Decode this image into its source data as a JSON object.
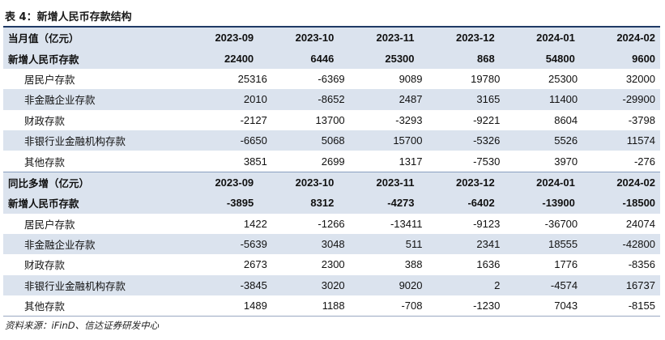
{
  "title": "表 4：新增人民币存款结构",
  "source": "资料来源：iFinD、信达证券研发中心",
  "section1": {
    "header": {
      "label": "当月值（亿元）",
      "cols": [
        "2023-09",
        "2023-10",
        "2023-11",
        "2023-12",
        "2024-01",
        "2024-02"
      ]
    },
    "rows": [
      {
        "label": "新增人民币存款",
        "values": [
          "22400",
          "6446",
          "25300",
          "868",
          "54800",
          "9600"
        ]
      },
      {
        "label": "居民户存款",
        "values": [
          "25316",
          "-6369",
          "9089",
          "19780",
          "25300",
          "32000"
        ]
      },
      {
        "label": "非金融企业存款",
        "values": [
          "2010",
          "-8652",
          "2487",
          "3165",
          "11400",
          "-29900"
        ]
      },
      {
        "label": "财政存款",
        "values": [
          "-2127",
          "13700",
          "-3293",
          "-9221",
          "8604",
          "-3798"
        ]
      },
      {
        "label": "非银行业金融机构存款",
        "values": [
          "-6650",
          "5068",
          "15700",
          "-5326",
          "5526",
          "11574"
        ]
      },
      {
        "label": "其他存款",
        "values": [
          "3851",
          "2699",
          "1317",
          "-7530",
          "3970",
          "-276"
        ]
      }
    ]
  },
  "section2": {
    "header": {
      "label": "同比多增（亿元）",
      "cols": [
        "2023-09",
        "2023-10",
        "2023-11",
        "2023-12",
        "2024-01",
        "2024-02"
      ]
    },
    "rows": [
      {
        "label": "新增人民币存款",
        "values": [
          "-3895",
          "8312",
          "-4273",
          "-6402",
          "-13900",
          "-18500"
        ]
      },
      {
        "label": "居民户存款",
        "values": [
          "1422",
          "-1266",
          "-13411",
          "-9123",
          "-36700",
          "24074"
        ]
      },
      {
        "label": "非金融企业存款",
        "values": [
          "-5639",
          "3048",
          "511",
          "2341",
          "18555",
          "-42800"
        ]
      },
      {
        "label": "财政存款",
        "values": [
          "2673",
          "2300",
          "388",
          "1636",
          "1776",
          "-8356"
        ]
      },
      {
        "label": "非银行业金融机构存款",
        "values": [
          "-3845",
          "3020",
          "9020",
          "2",
          "-4574",
          "16737"
        ]
      },
      {
        "label": "其他存款",
        "values": [
          "1489",
          "1188",
          "-708",
          "-1230",
          "7043",
          "-8155"
        ]
      }
    ]
  }
}
